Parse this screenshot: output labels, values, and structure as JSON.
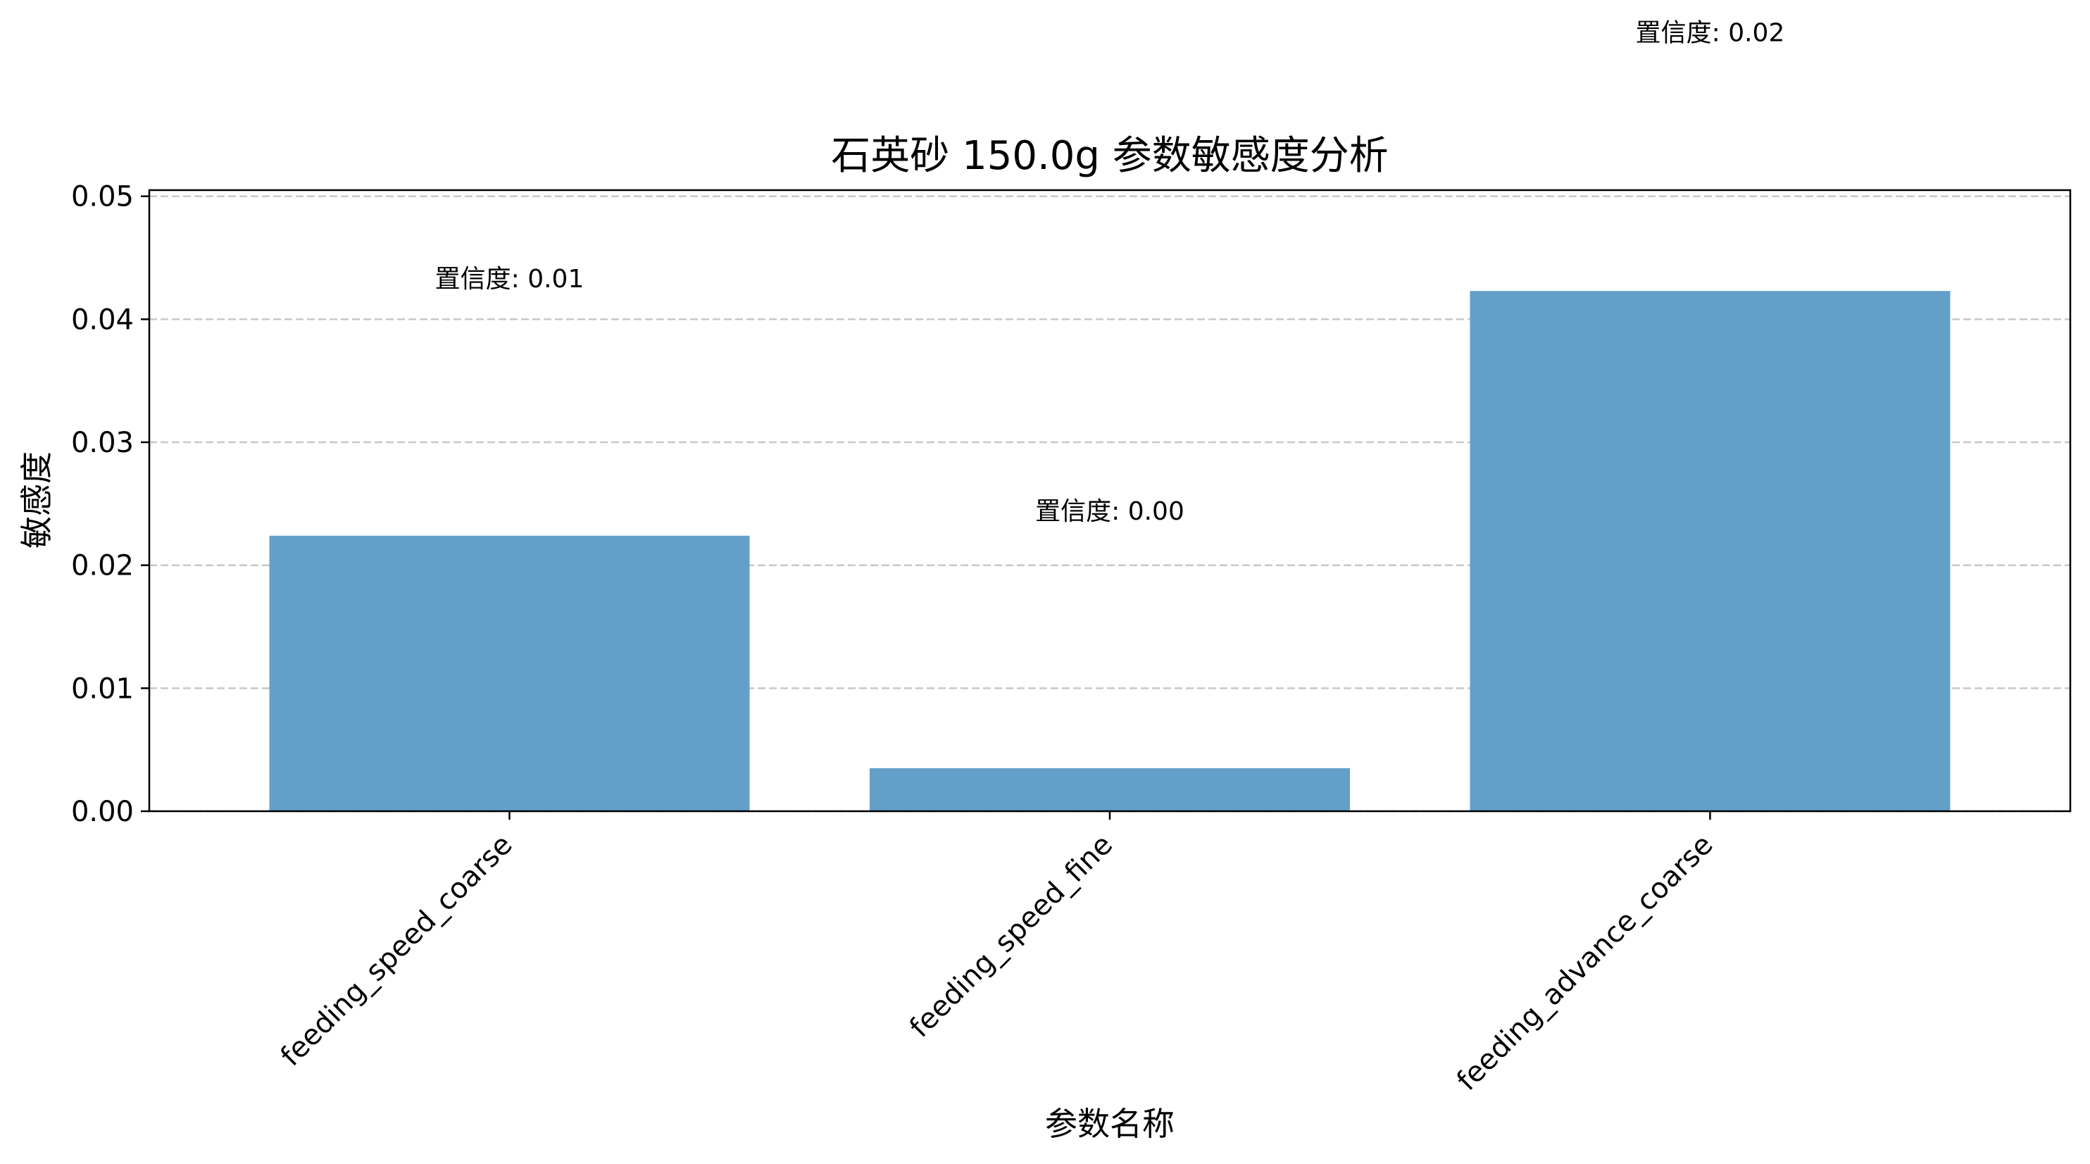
{
  "chart_data": {
    "type": "bar",
    "title": "石英砂 150.0g 参数敏感度分析",
    "xlabel": "参数名称",
    "ylabel": "敏感度",
    "categories": [
      "feeding_speed_coarse",
      "feeding_speed_fine",
      "feeding_advance_coarse"
    ],
    "values": [
      0.0224,
      0.0035,
      0.0423
    ],
    "annotations": [
      "置信度: 0.01",
      "置信度: 0.00",
      "置信度: 0.02"
    ],
    "annotation_y": [
      0.0434,
      0.0245,
      0.0634
    ],
    "ylim": [
      0,
      0.0505
    ],
    "yticks": [
      "0.00",
      "0.01",
      "0.02",
      "0.03",
      "0.04",
      "0.05"
    ],
    "ytick_values": [
      0,
      0.01,
      0.02,
      0.03,
      0.04,
      0.05
    ],
    "grid": "horizontal dashed",
    "bar_color": "#62a0ca",
    "grid_color": "#c8c8c8"
  }
}
